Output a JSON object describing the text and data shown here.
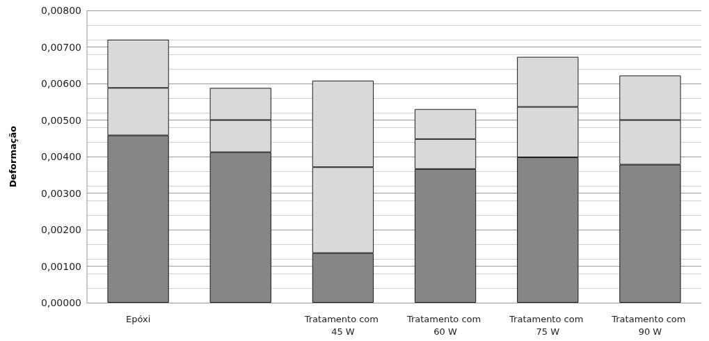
{
  "chart_data": {
    "type": "bar",
    "stacked": true,
    "ylabel": "Deformação",
    "categories": [
      "Epóxi",
      null,
      "Tratamento com 45 W",
      "Tratamento com 60 W",
      "Tratamento com 75 W",
      "Tratamento com 90 W"
    ],
    "series": [
      {
        "color": "#868686",
        "values": [
          0.00458,
          0.00412,
          0.00136,
          0.00366,
          0.00398,
          0.00378
        ]
      },
      {
        "color": "#d9d9d9",
        "values": [
          0.0013,
          0.00088,
          0.00235,
          0.00082,
          0.00138,
          0.00122
        ]
      },
      {
        "color": "#d9d9d9",
        "values": [
          0.00132,
          0.00088,
          0.00237,
          0.00082,
          0.00137,
          0.00122
        ]
      }
    ],
    "ylim": [
      0,
      0.008
    ],
    "yticks": [
      {
        "value": 0,
        "label": "0,00000"
      },
      {
        "value": 0.001,
        "label": "0,00100"
      },
      {
        "value": 0.002,
        "label": "0,00200"
      },
      {
        "value": 0.003,
        "label": "0,00300"
      },
      {
        "value": 0.004,
        "label": "0,00400"
      },
      {
        "value": 0.005,
        "label": "0,00500"
      },
      {
        "value": 0.006,
        "label": "0,00600"
      },
      {
        "value": 0.007,
        "label": "0,00700"
      },
      {
        "value": 0.008,
        "label": "0,00800"
      }
    ],
    "grid": true
  }
}
